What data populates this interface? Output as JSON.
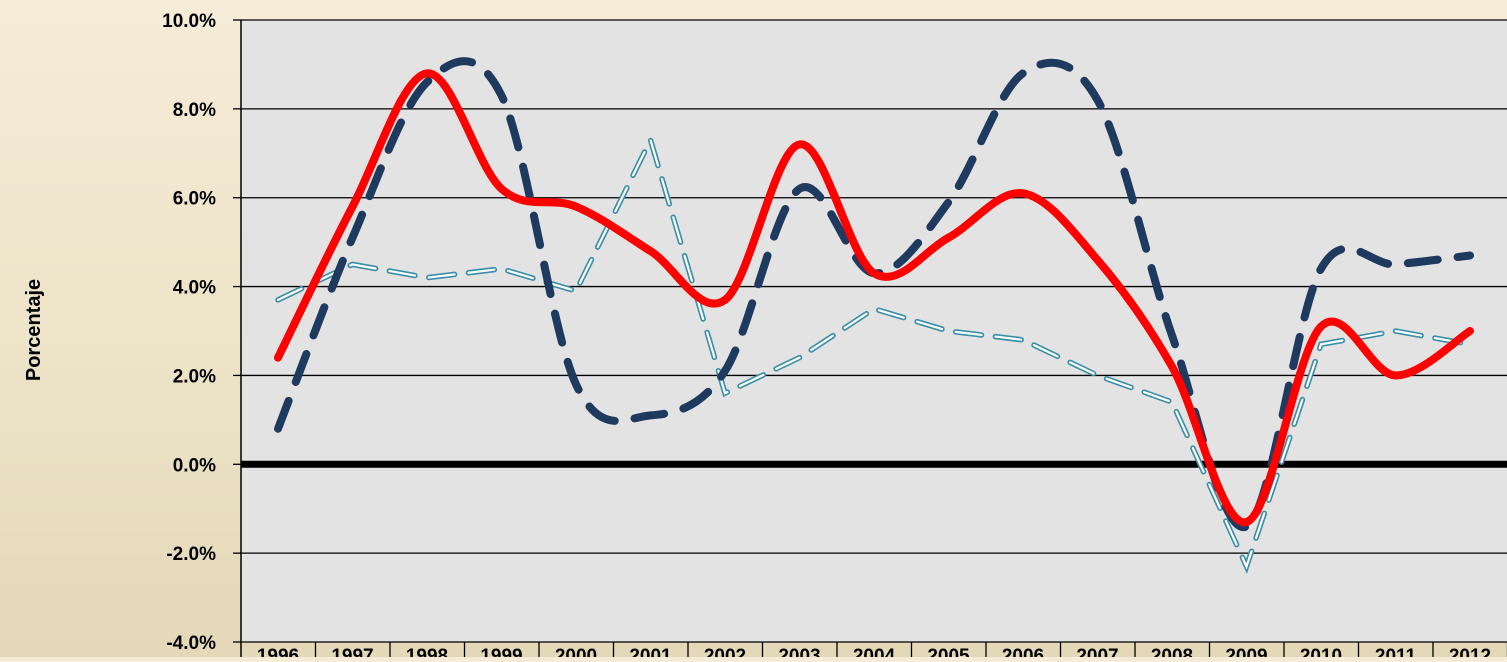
{
  "chart_data": {
    "type": "line",
    "ylabel": "Porcentaje",
    "xlabel": "",
    "ylim": [
      -4.0,
      10.0
    ],
    "ytick_step": 2.0,
    "ytick_labels": [
      "10.0%",
      "8.0%",
      "6.0%",
      "4.0%",
      "2.0%",
      "0.0%",
      "-2.0%",
      "-4.0%"
    ],
    "x": [
      "1996",
      "1997",
      "1998",
      "1999",
      "2000",
      "2001",
      "2002",
      "2003",
      "2004",
      "2005",
      "2006",
      "2007",
      "2008",
      "2009",
      "2010",
      "2011",
      "2012"
    ],
    "grid": true,
    "series": [
      {
        "values": [
          2.4,
          5.8,
          8.8,
          6.2,
          5.8,
          4.8,
          3.7,
          7.2,
          4.3,
          5.1,
          6.1,
          4.6,
          2.2,
          -1.3,
          3.1,
          2.0,
          3.0
        ],
        "color": "#ff0000",
        "style": "solid"
      },
      {
        "values": [
          0.8,
          5.1,
          8.6,
          8.3,
          1.8,
          1.1,
          2.1,
          6.2,
          4.3,
          5.9,
          8.8,
          8.2,
          2.9,
          -1.4,
          4.4,
          4.5,
          4.7
        ],
        "color": "#1f3a5f",
        "style": "long-dash"
      },
      {
        "values": [
          3.7,
          4.5,
          4.2,
          4.4,
          3.9,
          7.3,
          1.6,
          2.4,
          3.5,
          3.0,
          2.8,
          2.0,
          1.4,
          -2.3,
          2.7,
          3.0,
          2.7
        ],
        "color": "#3a8fa8",
        "style": "dash-outline"
      }
    ]
  }
}
